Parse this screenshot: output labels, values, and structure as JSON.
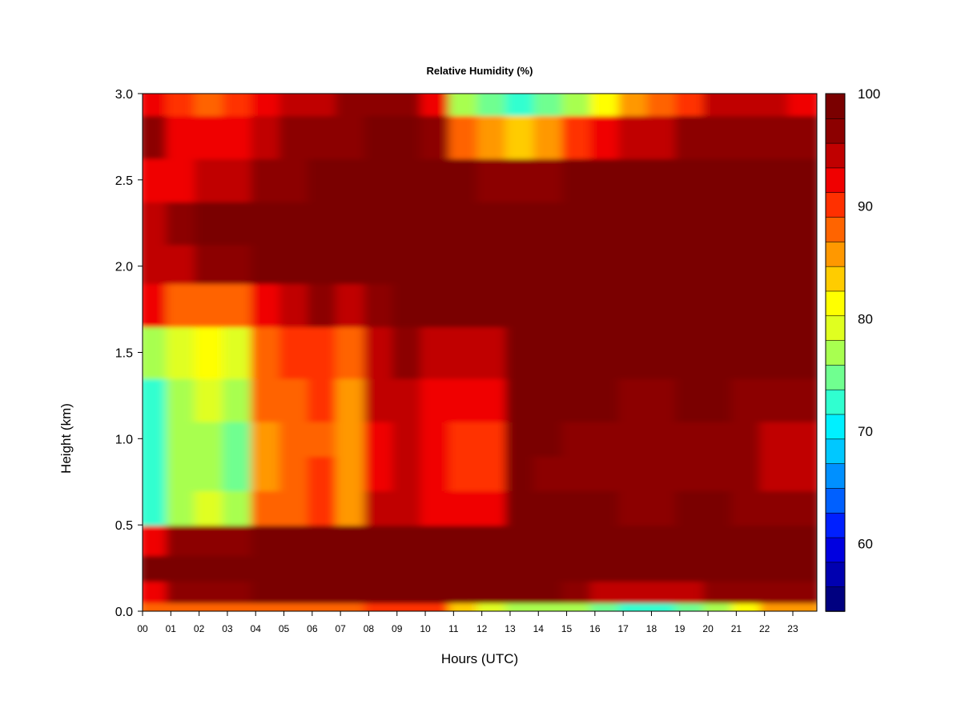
{
  "chart_data": {
    "type": "heatmap",
    "title": "Relative Humidity (%)",
    "xlabel": "Hours (UTC)",
    "ylabel": "Height (km)",
    "x_ticks": [
      "00",
      "01",
      "02",
      "03",
      "04",
      "05",
      "06",
      "07",
      "08",
      "09",
      "10",
      "11",
      "12",
      "13",
      "14",
      "15",
      "16",
      "17",
      "18",
      "19",
      "20",
      "21",
      "22",
      "23"
    ],
    "xlim": [
      0,
      23.85
    ],
    "y_ticks": [
      "0.0",
      "0.5",
      "1.0",
      "1.5",
      "2.0",
      "2.5",
      "3.0"
    ],
    "ylim": [
      0,
      3.0
    ],
    "colorbar": {
      "ticks": [
        "100",
        "90",
        "80",
        "70",
        "60"
      ],
      "range": [
        54,
        100
      ],
      "colors": [
        "#000080",
        "#0000b0",
        "#0000e0",
        "#0020ff",
        "#0060ff",
        "#0090ff",
        "#00c8ff",
        "#00f0ff",
        "#30ffd0",
        "#70ff90",
        "#a8ff50",
        "#e0ff20",
        "#ffff00",
        "#ffcc00",
        "#ff9800",
        "#ff6400",
        "#ff3000",
        "#f00000",
        "#c00000",
        "#8c0000",
        "#7a0000"
      ]
    },
    "heights_km": [
      0.0,
      0.1,
      0.25,
      0.4,
      0.6,
      0.8,
      1.0,
      1.2,
      1.5,
      1.8,
      2.0,
      2.25,
      2.5,
      2.75,
      3.0
    ],
    "hours": [
      0,
      1,
      2,
      3,
      4,
      5,
      6,
      7,
      8,
      9,
      10,
      11,
      12,
      13,
      14,
      15,
      16,
      17,
      18,
      19,
      20,
      21,
      22,
      23
    ],
    "rh_percent": [
      [
        88,
        93,
        98,
        93,
        73,
        72,
        72,
        73,
        78,
        92,
        95,
        95,
        93,
        97,
        93
      ],
      [
        88,
        96,
        98,
        96,
        78,
        77,
        77,
        78,
        80,
        88,
        95,
        97,
        93,
        92,
        90
      ],
      [
        88,
        96,
        99,
        97,
        79,
        78,
        78,
        79,
        81,
        89,
        96,
        98,
        94,
        92,
        89
      ],
      [
        88,
        97,
        99,
        97,
        76,
        75,
        75,
        76,
        79,
        89,
        97,
        99,
        95,
        93,
        90
      ],
      [
        89,
        98,
        99,
        98,
        87,
        86,
        86,
        87,
        88,
        93,
        98,
        99,
        96,
        95,
        93
      ],
      [
        89,
        98,
        100,
        99,
        89,
        88,
        88,
        89,
        90,
        95,
        98,
        99,
        97,
        96,
        94
      ],
      [
        89,
        98,
        100,
        99,
        90,
        90,
        89,
        90,
        91,
        96,
        99,
        100,
        98,
        97,
        95
      ],
      [
        89,
        98,
        100,
        99,
        86,
        86,
        86,
        86,
        88,
        95,
        99,
        100,
        98,
        97,
        96
      ],
      [
        90,
        98,
        100,
        99,
        94,
        93,
        93,
        94,
        95,
        97,
        99,
        100,
        99,
        98,
        96
      ],
      [
        90,
        99,
        100,
        99,
        95,
        95,
        95,
        95,
        96,
        98,
        99,
        100,
        99,
        98,
        96
      ],
      [
        90,
        99,
        100,
        98,
        93,
        92,
        92,
        93,
        94,
        98,
        100,
        100,
        99,
        97,
        93
      ],
      [
        84,
        98,
        100,
        98,
        92,
        91,
        91,
        92,
        94,
        98,
        100,
        100,
        98,
        88,
        78
      ],
      [
        80,
        98,
        100,
        98,
        92,
        91,
        91,
        92,
        95,
        99,
        100,
        100,
        97,
        86,
        75
      ],
      [
        78,
        98,
        100,
        99,
        99,
        99,
        99,
        99,
        99,
        100,
        100,
        100,
        96,
        84,
        72
      ],
      [
        78,
        98,
        100,
        99,
        98,
        97,
        98,
        99,
        100,
        100,
        100,
        100,
        97,
        86,
        74
      ],
      [
        78,
        97,
        100,
        99,
        98,
        97,
        97,
        98,
        99,
        100,
        100,
        100,
        98,
        90,
        78
      ],
      [
        75,
        95,
        100,
        99,
        98,
        97,
        97,
        98,
        99,
        100,
        100,
        100,
        98,
        92,
        82
      ],
      [
        72,
        94,
        100,
        99,
        97,
        96,
        96,
        97,
        99,
        100,
        100,
        100,
        99,
        94,
        86
      ],
      [
        72,
        94,
        100,
        99,
        97,
        96,
        96,
        97,
        99,
        100,
        100,
        100,
        99,
        95,
        88
      ],
      [
        74,
        95,
        100,
        99,
        98,
        97,
        97,
        98,
        99,
        100,
        100,
        100,
        99,
        96,
        91
      ],
      [
        78,
        96,
        100,
        99,
        98,
        97,
        97,
        98,
        99,
        100,
        100,
        100,
        99,
        97,
        94
      ],
      [
        82,
        97,
        100,
        99,
        97,
        96,
        96,
        97,
        99,
        100,
        100,
        100,
        99,
        97,
        95
      ],
      [
        85,
        97,
        99,
        99,
        96,
        95,
        95,
        96,
        98,
        99,
        100,
        100,
        98,
        96,
        94
      ],
      [
        86,
        97,
        99,
        98,
        96,
        95,
        95,
        96,
        98,
        99,
        100,
        99,
        98,
        96,
        93
      ]
    ]
  }
}
